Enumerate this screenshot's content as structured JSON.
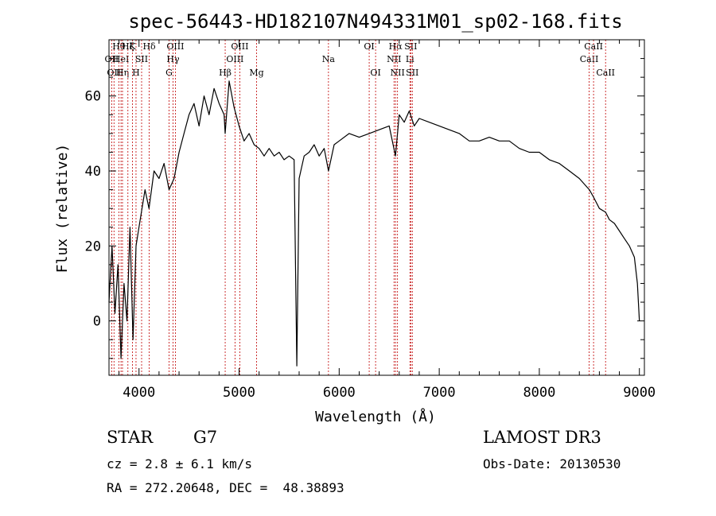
{
  "chart_data": {
    "type": "line",
    "title": "spec-56443-HD182107N494331M01_sp02-168.fits",
    "xlabel": "Wavelength (Å)",
    "ylabel": "Flux (relative)",
    "xlim": [
      3700,
      9050
    ],
    "ylim": [
      -14.5,
      75
    ],
    "xticks": [
      4000,
      5000,
      6000,
      7000,
      8000,
      9000
    ],
    "yticks": [
      0,
      20,
      40,
      60
    ],
    "series": [
      {
        "name": "spectrum",
        "x": [
          3700,
          3730,
          3760,
          3790,
          3820,
          3850,
          3880,
          3910,
          3940,
          3970,
          4000,
          4030,
          4060,
          4100,
          4150,
          4200,
          4250,
          4300,
          4350,
          4400,
          4450,
          4500,
          4550,
          4600,
          4650,
          4700,
          4750,
          4800,
          4850,
          4861,
          4900,
          4950,
          5000,
          5050,
          5100,
          5150,
          5200,
          5250,
          5300,
          5350,
          5400,
          5450,
          5500,
          5550,
          5577,
          5600,
          5650,
          5700,
          5750,
          5800,
          5850,
          5893,
          5950,
          6000,
          6100,
          6200,
          6300,
          6400,
          6500,
          6563,
          6600,
          6650,
          6700,
          6750,
          6800,
          6900,
          7000,
          7100,
          7200,
          7300,
          7400,
          7500,
          7600,
          7700,
          7800,
          7900,
          8000,
          8100,
          8200,
          8300,
          8400,
          8500,
          8542,
          8600,
          8662,
          8700,
          8750,
          8800,
          8850,
          8900,
          8950,
          8980,
          9000
        ],
        "values": [
          5,
          20,
          2,
          15,
          -10,
          10,
          0,
          25,
          -5,
          20,
          25,
          30,
          35,
          30,
          40,
          38,
          42,
          35,
          38,
          45,
          50,
          55,
          58,
          52,
          60,
          55,
          62,
          58,
          55,
          50,
          64,
          57,
          52,
          48,
          50,
          47,
          46,
          44,
          46,
          44,
          45,
          43,
          44,
          43,
          -12,
          38,
          44,
          45,
          47,
          44,
          46,
          40,
          47,
          48,
          50,
          49,
          50,
          51,
          52,
          44,
          55,
          53,
          56,
          52,
          54,
          53,
          52,
          51,
          50,
          48,
          48,
          49,
          48,
          48,
          46,
          45,
          45,
          43,
          42,
          40,
          38,
          35,
          33,
          30,
          29,
          27,
          26,
          24,
          22,
          20,
          17,
          10,
          0
        ]
      }
    ],
    "line_marks": [
      {
        "wl": 3727,
        "label": "OII",
        "row": 2
      },
      {
        "wl": 3750,
        "label": "OII",
        "row": 3
      },
      {
        "wl": 3798,
        "label": "Hθ",
        "row": 1
      },
      {
        "wl": 3820,
        "label": "HeI",
        "row": 2
      },
      {
        "wl": 3835,
        "label": "Hη",
        "row": 3
      },
      {
        "wl": 3889,
        "label": "Hζ",
        "row": 1
      },
      {
        "wl": 3934,
        "label": "K",
        "row": 1
      },
      {
        "wl": 3970,
        "label": "H",
        "row": 3
      },
      {
        "wl": 4026,
        "label": "SII",
        "row": 2
      },
      {
        "wl": 4102,
        "label": "Hδ",
        "row": 1
      },
      {
        "wl": 4300,
        "label": "G",
        "row": 3
      },
      {
        "wl": 4340,
        "label": "Hγ",
        "row": 2
      },
      {
        "wl": 4363,
        "label": "OIII",
        "row": 1
      },
      {
        "wl": 4861,
        "label": "Hβ",
        "row": 3
      },
      {
        "wl": 4959,
        "label": "OIII",
        "row": 2
      },
      {
        "wl": 5007,
        "label": "OIII",
        "row": 1
      },
      {
        "wl": 5175,
        "label": "Mg",
        "row": 3
      },
      {
        "wl": 5893,
        "label": "Na",
        "row": 2
      },
      {
        "wl": 6300,
        "label": "OI",
        "row": 1
      },
      {
        "wl": 6364,
        "label": "OI",
        "row": 3
      },
      {
        "wl": 6548,
        "label": "NII",
        "row": 2
      },
      {
        "wl": 6563,
        "label": "Hα",
        "row": 1
      },
      {
        "wl": 6583,
        "label": "NII",
        "row": 3
      },
      {
        "wl": 6707,
        "label": "Li",
        "row": 2
      },
      {
        "wl": 6716,
        "label": "SII",
        "row": 1
      },
      {
        "wl": 6731,
        "label": "SII",
        "row": 3
      },
      {
        "wl": 8498,
        "label": "CaII",
        "row": 2
      },
      {
        "wl": 8542,
        "label": "CaII",
        "row": 1
      },
      {
        "wl": 8662,
        "label": "CaII",
        "row": 3
      }
    ]
  },
  "info": {
    "object_class": "STAR",
    "subclass": "G7",
    "survey": "LAMOST DR3",
    "cz": "cz = 2.8 ± 6.1 km/s",
    "obs_date": "Obs-Date: 20130530",
    "coords": "RA = 272.20648, DEC =  48.38893"
  },
  "colors": {
    "spectrum": "#000000",
    "line_marks": "#c00000"
  }
}
